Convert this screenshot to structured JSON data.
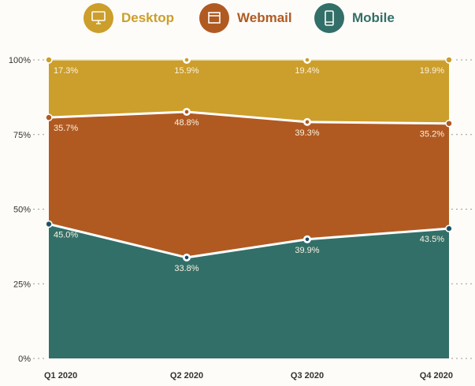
{
  "chart_data": {
    "type": "area",
    "stacked": true,
    "categories": [
      "Q1 2020",
      "Q2 2020",
      "Q3 2020",
      "Q4 2020"
    ],
    "ylim": [
      0,
      100
    ],
    "yticks": [
      "0%",
      "25%",
      "50%",
      "75%",
      "100%"
    ],
    "grid": false,
    "legend": "top",
    "series": [
      {
        "name": "Mobile",
        "color": "#336f69",
        "icon": "mobile-phone-icon",
        "values": [
          45.0,
          33.8,
          39.9,
          43.5
        ],
        "labels": [
          "45.0%",
          "33.8%",
          "39.9%",
          "43.5%"
        ]
      },
      {
        "name": "Webmail",
        "color": "#b05a22",
        "icon": "browser-window-icon",
        "values": [
          35.7,
          48.8,
          39.3,
          35.2
        ],
        "labels": [
          "35.7%",
          "48.8%",
          "39.3%",
          "35.2%"
        ]
      },
      {
        "name": "Desktop",
        "color": "#cc9e2b",
        "icon": "desktop-monitor-icon",
        "values": [
          17.3,
          15.9,
          19.4,
          19.9
        ],
        "labels": [
          "17.3%",
          "15.9%",
          "19.4%",
          "19.9%"
        ]
      }
    ]
  }
}
